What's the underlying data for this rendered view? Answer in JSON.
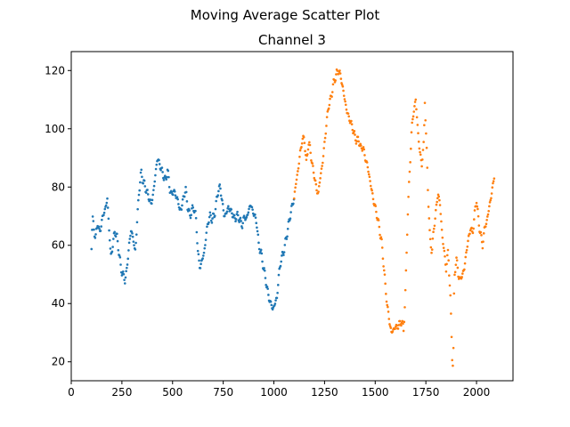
{
  "figure": {
    "suptitle": "Moving Average Scatter Plot"
  },
  "chart_data": {
    "type": "scatter",
    "title": "Channel 3",
    "xlabel": "",
    "ylabel": "",
    "xlim": [
      0,
      2180
    ],
    "ylim": [
      13.5,
      126.5
    ],
    "xticks": [
      0,
      250,
      500,
      750,
      1000,
      1250,
      1500,
      1750,
      2000
    ],
    "yticks": [
      20,
      40,
      60,
      80,
      100,
      120
    ],
    "grid": false,
    "legend": "none",
    "series": [
      {
        "color": "#1f77b4",
        "x_range": [
          100,
          1099
        ],
        "anchors": [
          [
            100,
            60
          ],
          [
            105,
            69
          ],
          [
            112,
            66
          ],
          [
            120,
            62
          ],
          [
            130,
            68
          ],
          [
            140,
            64
          ],
          [
            150,
            68
          ],
          [
            160,
            71
          ],
          [
            170,
            73
          ],
          [
            178,
            76
          ],
          [
            185,
            68
          ],
          [
            195,
            56
          ],
          [
            205,
            60
          ],
          [
            215,
            65
          ],
          [
            225,
            63
          ],
          [
            235,
            58
          ],
          [
            245,
            52
          ],
          [
            255,
            50
          ],
          [
            265,
            48
          ],
          [
            275,
            52
          ],
          [
            285,
            60
          ],
          [
            295,
            65
          ],
          [
            305,
            63
          ],
          [
            315,
            57
          ],
          [
            325,
            68
          ],
          [
            335,
            79
          ],
          [
            345,
            85
          ],
          [
            355,
            82
          ],
          [
            365,
            80
          ],
          [
            375,
            78
          ],
          [
            385,
            76
          ],
          [
            395,
            74
          ],
          [
            405,
            78
          ],
          [
            415,
            84
          ],
          [
            425,
            90
          ],
          [
            435,
            88
          ],
          [
            445,
            86
          ],
          [
            455,
            84
          ],
          [
            465,
            82
          ],
          [
            475,
            86
          ],
          [
            485,
            80
          ],
          [
            495,
            77
          ],
          [
            505,
            79
          ],
          [
            515,
            77
          ],
          [
            525,
            76
          ],
          [
            535,
            72
          ],
          [
            545,
            73
          ],
          [
            555,
            77
          ],
          [
            565,
            79
          ],
          [
            575,
            73
          ],
          [
            585,
            70
          ],
          [
            595,
            72
          ],
          [
            605,
            73
          ],
          [
            615,
            70
          ],
          [
            625,
            58
          ],
          [
            635,
            52
          ],
          [
            645,
            55
          ],
          [
            655,
            57
          ],
          [
            665,
            63
          ],
          [
            675,
            68
          ],
          [
            685,
            70
          ],
          [
            695,
            69
          ],
          [
            705,
            70
          ],
          [
            715,
            74
          ],
          [
            725,
            79
          ],
          [
            735,
            80
          ],
          [
            745,
            75
          ],
          [
            755,
            70
          ],
          [
            765,
            71
          ],
          [
            775,
            73
          ],
          [
            785,
            72
          ],
          [
            795,
            71
          ],
          [
            805,
            69
          ],
          [
            815,
            70
          ],
          [
            825,
            70
          ],
          [
            835,
            68
          ],
          [
            845,
            67
          ],
          [
            855,
            70
          ],
          [
            865,
            69
          ],
          [
            875,
            72
          ],
          [
            885,
            74
          ],
          [
            895,
            72
          ],
          [
            905,
            70
          ],
          [
            915,
            68
          ],
          [
            925,
            60
          ],
          [
            935,
            58
          ],
          [
            945,
            54
          ],
          [
            955,
            50
          ],
          [
            965,
            46
          ],
          [
            975,
            42
          ],
          [
            985,
            40
          ],
          [
            995,
            38
          ],
          [
            1005,
            40
          ],
          [
            1015,
            42
          ],
          [
            1025,
            50
          ],
          [
            1035,
            55
          ],
          [
            1045,
            57
          ],
          [
            1055,
            60
          ],
          [
            1065,
            64
          ],
          [
            1075,
            68
          ],
          [
            1085,
            72
          ],
          [
            1099,
            76
          ]
        ]
      },
      {
        "color": "#ff7f0e",
        "x_range": [
          1100,
          2087
        ],
        "anchors": [
          [
            1100,
            76
          ],
          [
            1110,
            82
          ],
          [
            1120,
            86
          ],
          [
            1130,
            92
          ],
          [
            1140,
            96
          ],
          [
            1150,
            97
          ],
          [
            1160,
            88
          ],
          [
            1170,
            95
          ],
          [
            1180,
            93
          ],
          [
            1190,
            87
          ],
          [
            1200,
            84
          ],
          [
            1210,
            79
          ],
          [
            1220,
            78
          ],
          [
            1230,
            84
          ],
          [
            1240,
            88
          ],
          [
            1250,
            95
          ],
          [
            1260,
            102
          ],
          [
            1270,
            108
          ],
          [
            1280,
            110
          ],
          [
            1290,
            114
          ],
          [
            1300,
            117
          ],
          [
            1310,
            119
          ],
          [
            1320,
            120
          ],
          [
            1330,
            118
          ],
          [
            1340,
            114
          ],
          [
            1350,
            110
          ],
          [
            1360,
            106
          ],
          [
            1370,
            104
          ],
          [
            1380,
            102
          ],
          [
            1390,
            100
          ],
          [
            1400,
            97
          ],
          [
            1410,
            96
          ],
          [
            1420,
            96
          ],
          [
            1430,
            93
          ],
          [
            1440,
            94
          ],
          [
            1450,
            90
          ],
          [
            1460,
            88
          ],
          [
            1470,
            84
          ],
          [
            1480,
            80
          ],
          [
            1490,
            76
          ],
          [
            1500,
            73
          ],
          [
            1510,
            70
          ],
          [
            1520,
            66
          ],
          [
            1530,
            62
          ],
          [
            1540,
            55
          ],
          [
            1550,
            46
          ],
          [
            1560,
            39
          ],
          [
            1570,
            34
          ],
          [
            1580,
            30
          ],
          [
            1590,
            31
          ],
          [
            1600,
            32
          ],
          [
            1610,
            32
          ],
          [
            1620,
            33
          ],
          [
            1630,
            34
          ],
          [
            1640,
            31
          ],
          [
            1650,
            45
          ],
          [
            1660,
            70
          ],
          [
            1670,
            85
          ],
          [
            1680,
            100
          ],
          [
            1690,
            106
          ],
          [
            1700,
            110
          ],
          [
            1710,
            100
          ],
          [
            1720,
            92
          ],
          [
            1730,
            88
          ],
          [
            1740,
            95
          ],
          [
            1745,
            110
          ],
          [
            1750,
            100
          ],
          [
            1760,
            80
          ],
          [
            1770,
            62
          ],
          [
            1780,
            58
          ],
          [
            1790,
            66
          ],
          [
            1800,
            72
          ],
          [
            1810,
            78
          ],
          [
            1820,
            74
          ],
          [
            1830,
            64
          ],
          [
            1840,
            58
          ],
          [
            1850,
            52
          ],
          [
            1860,
            58
          ],
          [
            1870,
            44
          ],
          [
            1880,
            22
          ],
          [
            1885,
            18
          ],
          [
            1890,
            48
          ],
          [
            1900,
            56
          ],
          [
            1910,
            50
          ],
          [
            1920,
            48
          ],
          [
            1930,
            50
          ],
          [
            1940,
            52
          ],
          [
            1950,
            58
          ],
          [
            1960,
            62
          ],
          [
            1970,
            66
          ],
          [
            1980,
            64
          ],
          [
            1990,
            70
          ],
          [
            2000,
            76
          ],
          [
            2010,
            68
          ],
          [
            2020,
            64
          ],
          [
            2030,
            60
          ],
          [
            2040,
            66
          ],
          [
            2050,
            68
          ],
          [
            2060,
            72
          ],
          [
            2070,
            76
          ],
          [
            2080,
            80
          ],
          [
            2087,
            84
          ]
        ]
      }
    ]
  }
}
